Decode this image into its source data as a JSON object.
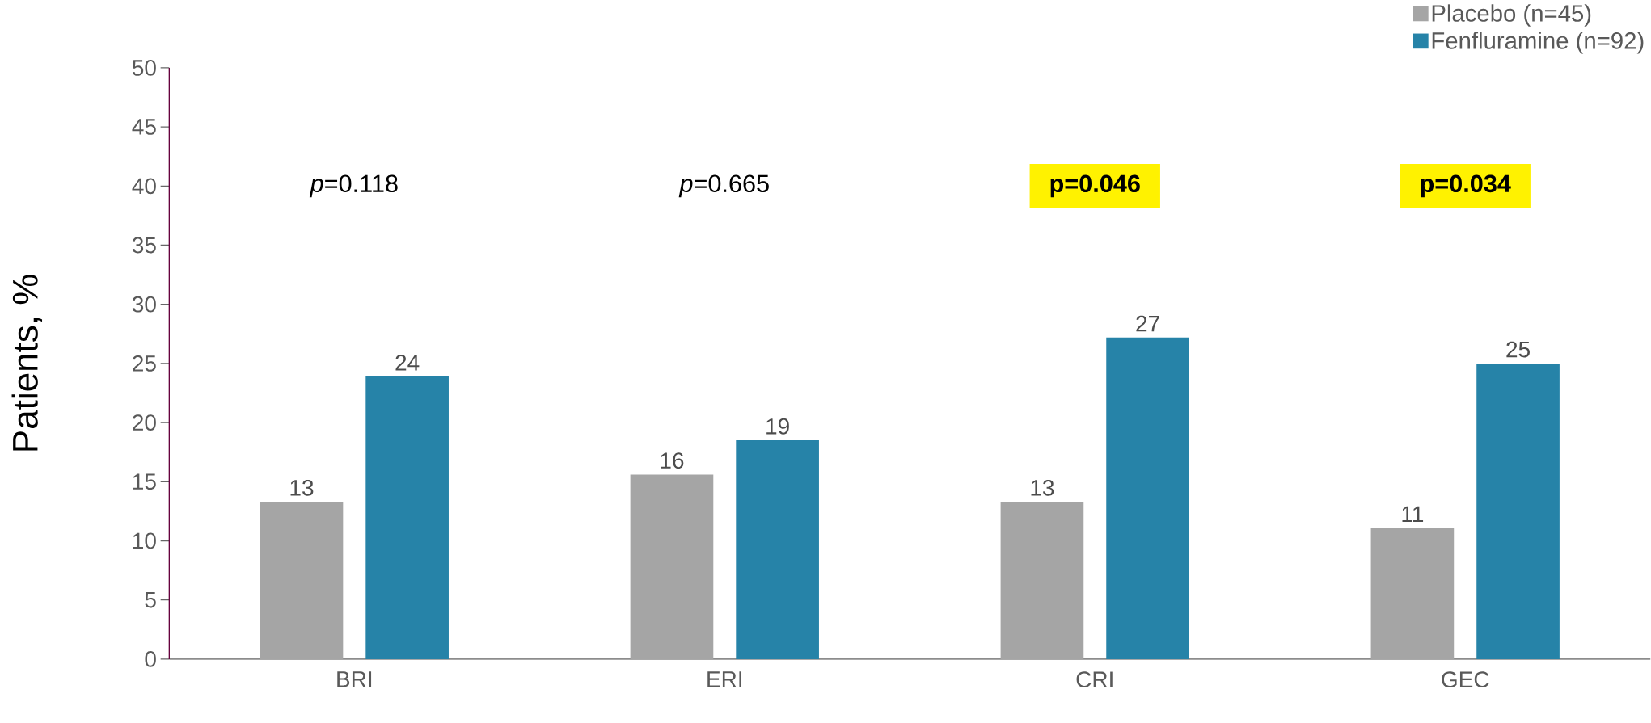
{
  "chart_data": {
    "type": "bar",
    "ylabel": "Patients, %",
    "categories": [
      "BRI",
      "ERI",
      "CRI",
      "GEC"
    ],
    "series": [
      {
        "name": "Placebo (n=45)",
        "color": "#a5a5a5",
        "values": [
          13.3,
          15.6,
          13.3,
          11.1
        ],
        "value_labels": [
          "13",
          "16",
          "13",
          "11"
        ]
      },
      {
        "name": "Fenfluramine (n=92)",
        "color": "#2683a8",
        "values": [
          23.9,
          18.5,
          27.2,
          25.0
        ],
        "value_labels": [
          "24",
          "19",
          "27",
          "25"
        ]
      }
    ],
    "ylim": [
      0,
      50
    ],
    "yticks": [
      0,
      5,
      10,
      15,
      20,
      25,
      30,
      35,
      40,
      45,
      50
    ],
    "grid": false,
    "legend": "top right",
    "annotations": [
      "*p*=0.118",
      "*p*=0.665",
      "**p=0.046**",
      "**p=0.034**"
    ]
  }
}
